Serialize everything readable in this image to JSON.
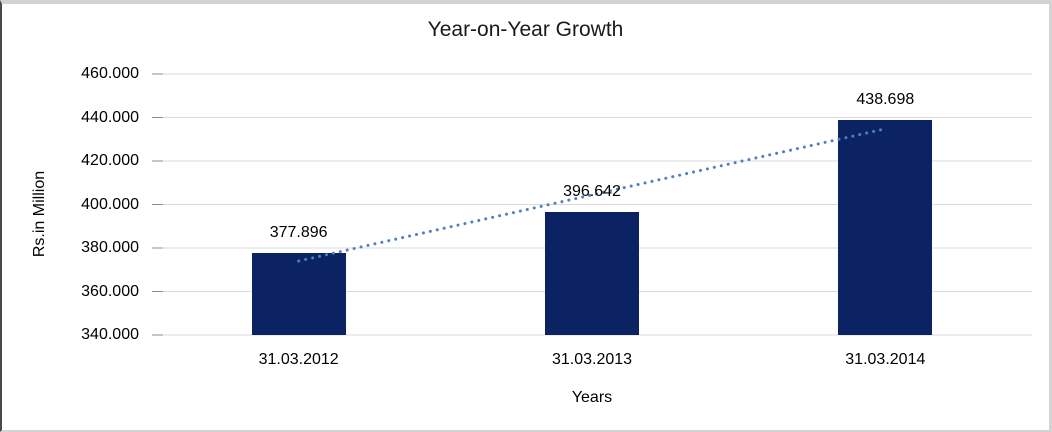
{
  "chart_data": {
    "type": "bar",
    "title": "Year-on-Year Growth",
    "xlabel": "Years",
    "ylabel": "Rs.in Million",
    "categories": [
      "31.03.2012",
      "31.03.2013",
      "31.03.2014"
    ],
    "values": [
      377.896,
      396.642,
      438.698
    ],
    "data_labels": [
      "377.896",
      "396.642",
      "438.698"
    ],
    "ylim": [
      340,
      460
    ],
    "ytick_interval": 20,
    "ytick_labels": [
      "340.000",
      "360.000",
      "380.000",
      "400.000",
      "420.000",
      "440.000",
      "460.000"
    ],
    "grid": true,
    "legend": "none",
    "trendline": {
      "type": "linear",
      "style": "dotted"
    },
    "colors": {
      "bar": "#0b2263",
      "trendline": "#4f81bd",
      "gridline": "#d9d9d9",
      "tick_mark": "#8c8c8c",
      "text": "#000000",
      "frame_border": "#d3d3d3"
    }
  }
}
